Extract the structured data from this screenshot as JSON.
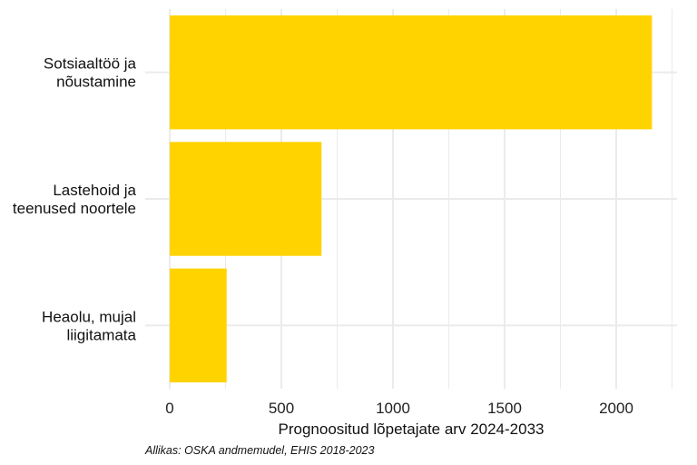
{
  "chart_data": {
    "type": "bar",
    "orientation": "horizontal",
    "categories": [
      "Sotsiaaltöö ja nõustamine",
      "Lastehoid ja teenused noortele",
      "Heaolu, mujal liigitamata"
    ],
    "category_lines": [
      [
        "Sotsiaaltöö ja",
        "nõustamine"
      ],
      [
        "Lastehoid ja",
        "teenused noortele"
      ],
      [
        "Heaolu, mujal",
        "liigitamata"
      ]
    ],
    "values": [
      2160,
      680,
      255
    ],
    "xlabel": "Prognoositud lõpetajate arv 2024-2033",
    "ylabel": "",
    "xlim": [
      0,
      2270
    ],
    "xticks": [
      0,
      500,
      1000,
      1500,
      2000
    ],
    "x_minor_ticks": [
      250,
      750,
      1250,
      1750,
      2250
    ],
    "grid": true,
    "bar_color": "#FFD300",
    "grid_color": "#EBEBEB",
    "caption": "Allikas: OSKA andmemudel, EHIS 2018-2023"
  }
}
